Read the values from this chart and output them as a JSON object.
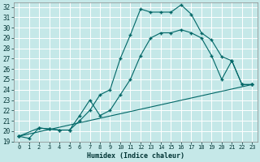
{
  "xlabel": "Humidex (Indice chaleur)",
  "bg_color": "#c5e8e8",
  "grid_color": "#ffffff",
  "line_color": "#006666",
  "xlim": [
    -0.5,
    23.5
  ],
  "ylim": [
    19,
    32.4
  ],
  "xticks": [
    0,
    1,
    2,
    3,
    4,
    5,
    6,
    7,
    8,
    9,
    10,
    11,
    12,
    13,
    14,
    15,
    16,
    17,
    18,
    19,
    20,
    21,
    22,
    23
  ],
  "yticks": [
    19,
    20,
    21,
    22,
    23,
    24,
    25,
    26,
    27,
    28,
    29,
    30,
    31,
    32
  ],
  "line1_x": [
    0,
    1,
    2,
    3,
    4,
    5,
    6,
    7,
    8,
    9,
    10,
    11,
    12,
    13,
    14,
    15,
    16,
    17,
    18,
    19,
    20,
    21,
    22,
    23
  ],
  "line1_y": [
    19.5,
    19.3,
    20.3,
    20.2,
    20.1,
    20.1,
    21.0,
    22.0,
    23.5,
    24.0,
    27.0,
    29.3,
    31.8,
    31.5,
    31.5,
    31.5,
    32.2,
    31.3,
    29.5,
    28.8,
    27.2,
    26.8,
    24.5,
    24.5
  ],
  "line2_x": [
    0,
    2,
    3,
    4,
    5,
    6,
    7,
    8,
    9,
    10,
    11,
    12,
    13,
    14,
    15,
    16,
    17,
    18,
    19,
    20,
    21,
    22,
    23
  ],
  "line2_y": [
    19.5,
    20.3,
    20.2,
    20.1,
    20.1,
    21.5,
    23.0,
    21.5,
    22.0,
    23.5,
    25.0,
    27.3,
    29.0,
    29.5,
    29.5,
    29.8,
    29.5,
    29.0,
    27.3,
    25.0,
    26.8,
    24.5,
    24.5
  ],
  "line3_x": [
    0,
    23
  ],
  "line3_y": [
    19.5,
    24.5
  ]
}
